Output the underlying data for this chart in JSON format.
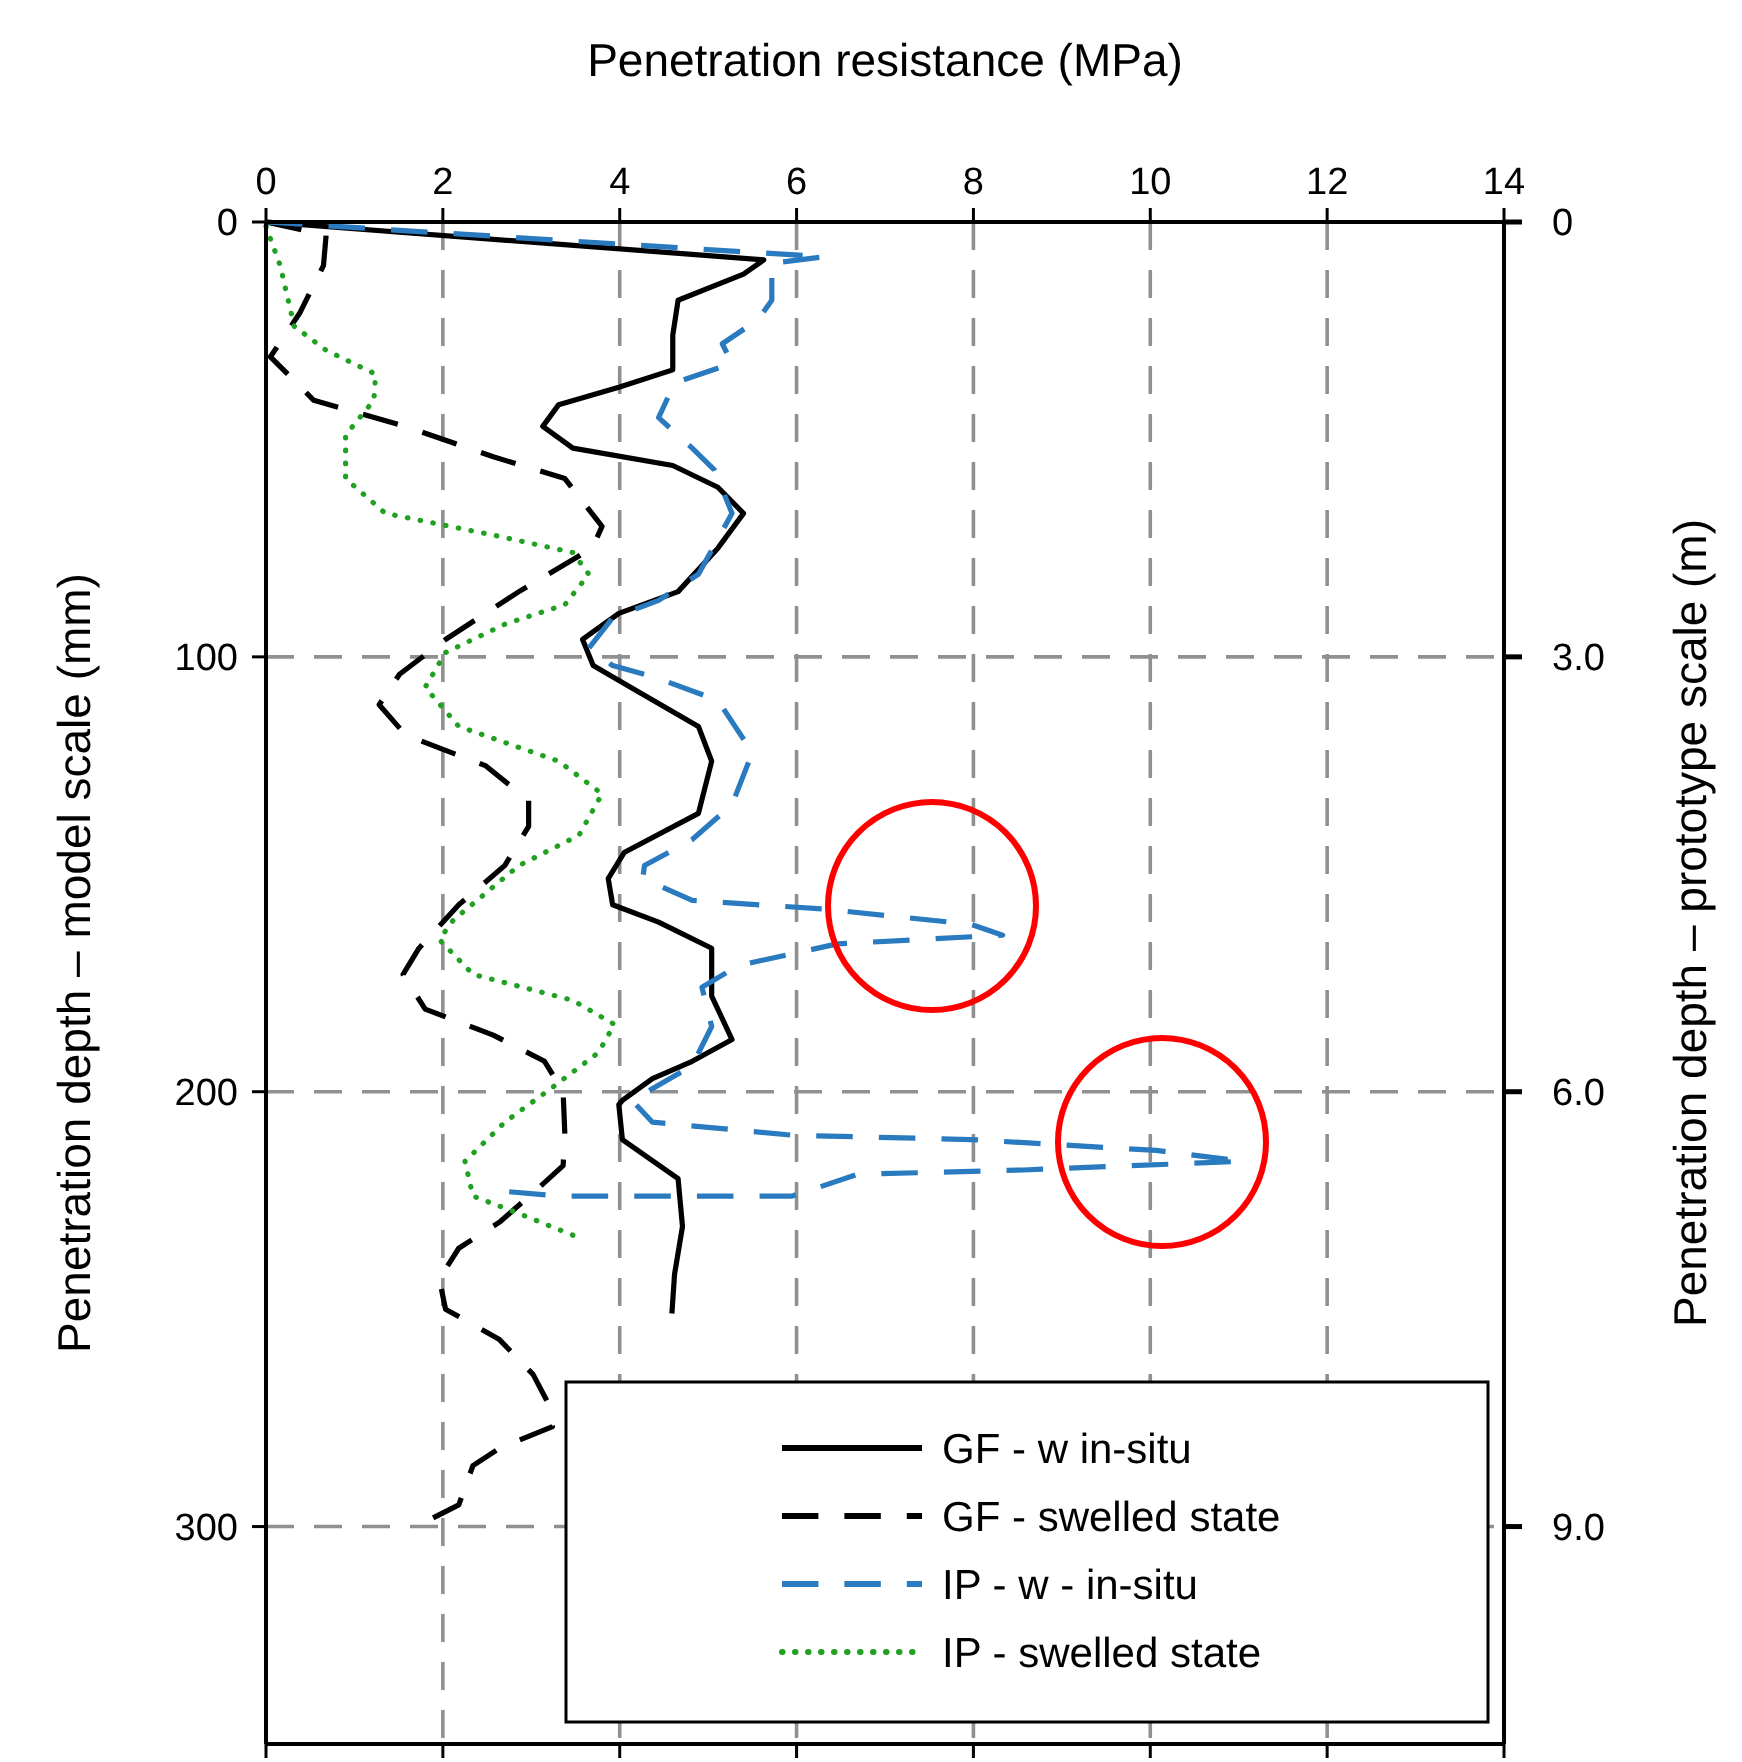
{
  "chart_data": {
    "type": "line",
    "xlabel": "Penetration resistance (MPa)",
    "ylabel": "Penetration depth – model scale (mm)",
    "y2label": "Penetration depth – prototype scale (m)",
    "xlim": [
      0,
      14
    ],
    "xticks": [
      0,
      2,
      4,
      6,
      8,
      10,
      12,
      14
    ],
    "ylim": [
      350,
      0
    ],
    "yticks": [
      0,
      100,
      200,
      300
    ],
    "y2lim": [
      10.5,
      0
    ],
    "y2ticks": [
      0,
      {
        "value": 3,
        "label": "3.0"
      },
      {
        "value": 6,
        "label": "6.0"
      },
      {
        "value": 9,
        "label": "9.0"
      }
    ],
    "grid": true,
    "legend": "bottom right",
    "series": [
      {
        "name": "GF - w in-situ",
        "color": "#000000",
        "line_style": "solid",
        "x": [
          0,
          5.63,
          5.4,
          4.66,
          4.6,
          4.6,
          3.99,
          3.31,
          3.13,
          3.47,
          4.6,
          5.11,
          5.4,
          5.11,
          4.66,
          3.99,
          3.58,
          3.7,
          4.21,
          4.89,
          5.04,
          4.89,
          4.05,
          3.87,
          3.92,
          4.44,
          5.04,
          5.04,
          5.27,
          4.82,
          4.37,
          4.03,
          3.99,
          4.03,
          4.66,
          4.71,
          4.62,
          4.59
        ],
        "values": [
          0,
          8.7,
          12,
          18,
          26,
          34,
          38,
          42,
          47,
          52,
          56,
          61,
          67,
          75,
          85,
          90,
          96,
          102,
          108,
          116,
          124,
          136,
          145,
          151,
          157,
          161,
          167,
          178,
          188,
          193,
          197,
          202,
          203,
          211,
          220,
          231,
          242,
          251
        ]
      },
      {
        "name": "GF - swelled state",
        "color": "#000000",
        "line_style": "dashed",
        "x": [
          0,
          0.68,
          0.65,
          0.38,
          0.05,
          0.54,
          1.58,
          2.57,
          3.38,
          3.8,
          3.69,
          2.86,
          2.03,
          1.51,
          1.28,
          1.58,
          2.48,
          2.97,
          2.97,
          2.7,
          2.18,
          1.73,
          1.55,
          1.8,
          2.57,
          3.15,
          3.36,
          3.38,
          3.36,
          3.09,
          2.64,
          2.18,
          1.96,
          2.03,
          2.64,
          3.02,
          3.2,
          3.24,
          2.64,
          2.34,
          2.18,
          1.89
        ],
        "values": [
          0,
          3,
          10,
          21,
          31,
          41,
          47,
          54,
          59,
          70,
          75,
          85,
          96,
          104,
          111,
          118,
          125,
          133,
          139,
          148,
          157,
          167,
          173,
          181,
          187,
          193,
          200,
          210,
          217,
          222,
          230,
          236,
          243,
          250,
          257,
          265,
          272,
          277,
          282,
          286,
          295,
          298
        ]
      },
      {
        "name": "IP - w - in-situ",
        "color": "#2a7abf",
        "line_style": "dashed",
        "x": [
          0,
          6.31,
          5.72,
          5.72,
          5.56,
          5.16,
          5.27,
          4.62,
          4.44,
          4.82,
          5.07,
          5.27,
          4.89,
          4.44,
          3.92,
          3.65,
          3.92,
          4.37,
          5.11,
          5.5,
          5.27,
          4.82,
          4.28,
          4.26,
          4.82,
          6.31,
          7.97,
          8.33,
          6.46,
          5.34,
          4.93,
          5.04,
          4.82,
          4.14,
          4.37,
          5.95,
          7.97,
          10.07,
          11.04,
          8.56,
          6.69,
          5.95,
          3.31,
          2.75
        ],
        "values": [
          0,
          8,
          9.5,
          18,
          22.5,
          28,
          32.5,
          37,
          45,
          52,
          57,
          67,
          81,
          87,
          91,
          98,
          102,
          104.5,
          110,
          122,
          134,
          142,
          148,
          151,
          156,
          158,
          161.5,
          164,
          166,
          171,
          176,
          185,
          194,
          202,
          207,
          210,
          211,
          213.5,
          216,
          218,
          219,
          224,
          224,
          223
        ]
      },
      {
        "name": "IP - swelled state",
        "color": "#22a022",
        "line_style": "dotted",
        "x": [
          0,
          0.16,
          0.32,
          0.68,
          1.24,
          1.22,
          0.9,
          0.9,
          1.35,
          2.57,
          3.47,
          3.65,
          3.38,
          2.7,
          2.03,
          1.8,
          2.18,
          3.31,
          3.8,
          3.54,
          2.86,
          2.12,
          1.96,
          2.34,
          3.47,
          3.94,
          3.76,
          3.24,
          2.7,
          2.25,
          2.34,
          2.86,
          3.47
        ],
        "values": [
          1,
          10,
          24,
          29.5,
          35,
          41,
          49,
          59,
          67,
          72,
          76,
          81,
          88,
          92.5,
          99,
          107,
          116,
          124,
          131.5,
          141,
          148,
          160.5,
          165,
          173,
          179,
          184.5,
          191,
          199,
          207,
          216,
          224,
          228,
          233
        ]
      }
    ]
  }
}
